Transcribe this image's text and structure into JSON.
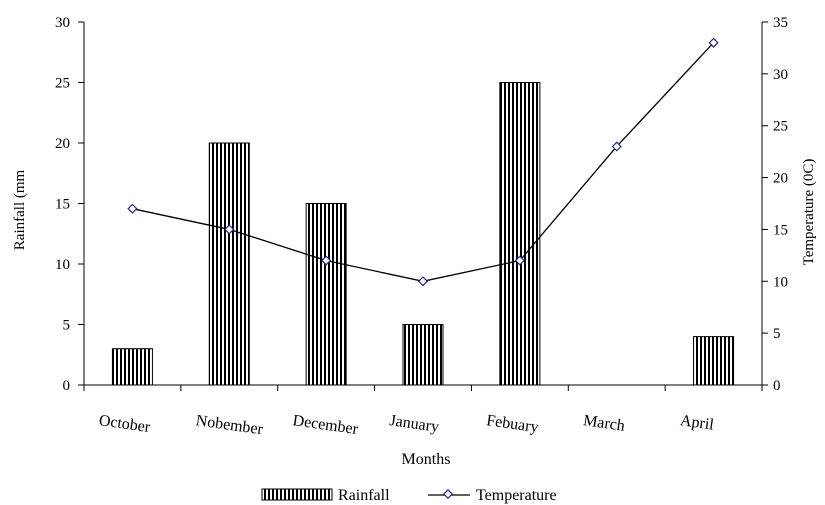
{
  "chart_data": {
    "type": "bar",
    "categories": [
      "October",
      "Nobember",
      "December",
      "January",
      "Febuary",
      "March",
      "April"
    ],
    "series": [
      {
        "name": "Rainfall",
        "type": "bar",
        "axis": "left",
        "values": [
          3,
          20,
          15,
          5,
          25,
          0,
          4
        ]
      },
      {
        "name": "Temperature",
        "type": "line",
        "axis": "right",
        "values": [
          17,
          15,
          12,
          10,
          12,
          23,
          33
        ]
      }
    ],
    "xlabel": "Months",
    "ylabel": "Rainfall (mm",
    "y2label": "Temperature (0C)",
    "ylim": [
      0,
      30
    ],
    "y2lim": [
      0,
      35
    ],
    "yticks": [
      0,
      5,
      10,
      15,
      20,
      25,
      30
    ],
    "y2ticks": [
      0,
      5,
      10,
      15,
      20,
      25,
      30,
      35
    ],
    "grid": false,
    "legend": {
      "position": "bottom",
      "entries": [
        "Rainfall",
        "Temperature"
      ]
    },
    "colors": {
      "bar_stripe": "#000000",
      "bar_fill": "#ffffff",
      "line": "#000000",
      "marker": "#1f2a8a"
    }
  }
}
